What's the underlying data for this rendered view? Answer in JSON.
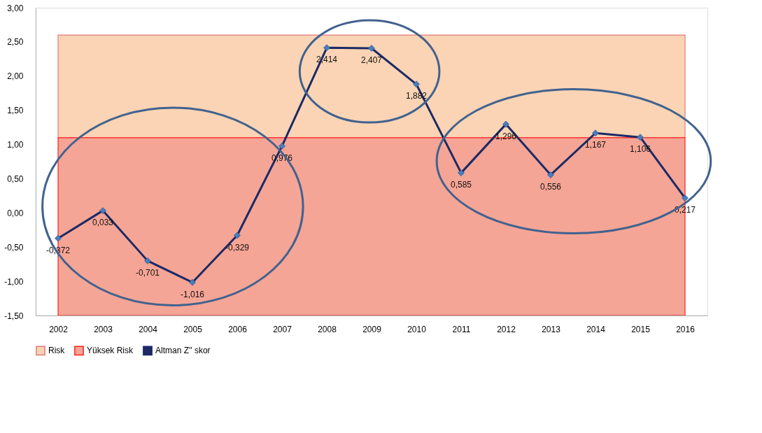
{
  "chart_data": {
    "type": "line",
    "categories": [
      "2002",
      "2003",
      "2004",
      "2005",
      "2006",
      "2007",
      "2008",
      "2009",
      "2010",
      "2011",
      "2012",
      "2013",
      "2014",
      "2015",
      "2016"
    ],
    "series": [
      {
        "name": "Altman Z'' skor",
        "color": "#1b2a66",
        "values": [
          -0.372,
          0.033,
          -0.701,
          -1.016,
          -0.329,
          0.976,
          2.414,
          2.407,
          1.882,
          0.585,
          1.296,
          0.556,
          1.167,
          1.106,
          0.217
        ],
        "value_labels": [
          "-0,372",
          "0,033",
          "-0,701",
          "-1,016",
          "-0,329",
          "0,976",
          "2,414",
          "2,407",
          "1,882",
          "0,585",
          "1,296",
          "0,556",
          "1,167",
          "1,106",
          "0,217"
        ]
      }
    ],
    "bands": [
      {
        "axis": "y",
        "from": 1.1,
        "to": 2.6,
        "label": "Risk",
        "color": "#fad4b4"
      },
      {
        "axis": "y",
        "from": -1.5,
        "to": 1.1,
        "label": "Yüksek Risk",
        "color": "#f5a595"
      }
    ],
    "ylim": [
      -1.5,
      3.0
    ],
    "yticks": [
      {
        "value": -1.5,
        "label": "-1,50"
      },
      {
        "value": -1.0,
        "label": "-1,00"
      },
      {
        "value": -0.5,
        "label": "-0,50"
      },
      {
        "value": 0.0,
        "label": "0,00"
      },
      {
        "value": 0.5,
        "label": "0,50"
      },
      {
        "value": 1.0,
        "label": "1,00"
      },
      {
        "value": 1.5,
        "label": "1,50"
      },
      {
        "value": 2.0,
        "label": "2,00"
      },
      {
        "value": 2.5,
        "label": "2,50"
      },
      {
        "value": 3.0,
        "label": "3,00"
      }
    ],
    "grid": false,
    "legend": "bottom",
    "marker": "diamond",
    "line_style": "solid"
  }
}
